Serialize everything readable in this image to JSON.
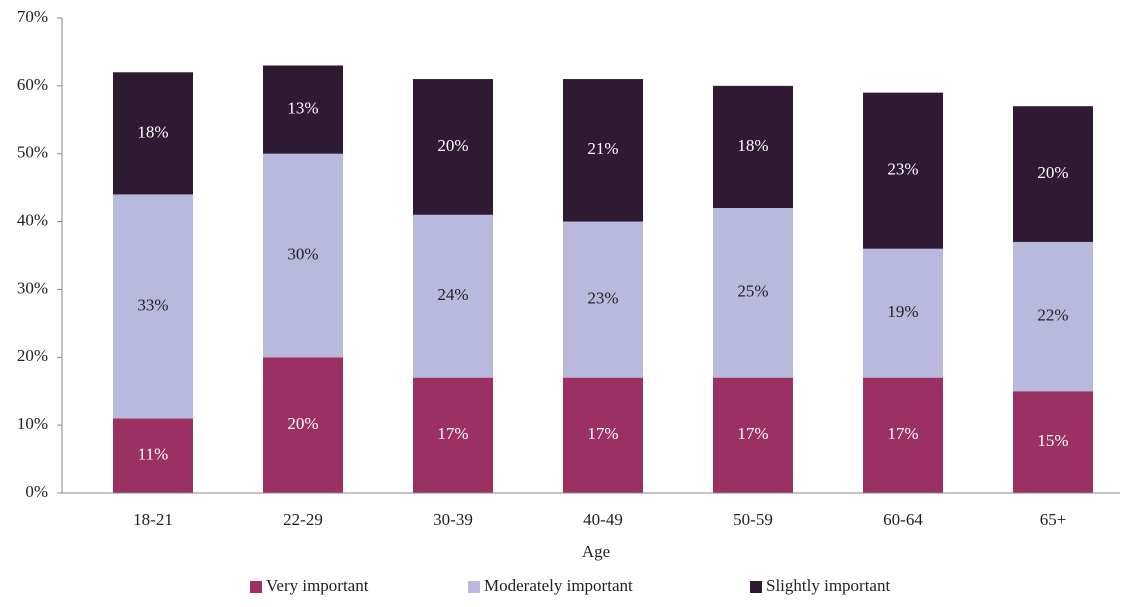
{
  "chart_data": {
    "type": "stacked_bar",
    "x_label": "Age",
    "categories": [
      "18-21",
      "22-29",
      "30-39",
      "40-49",
      "50-59",
      "60-64",
      "65+"
    ],
    "series": [
      {
        "name": "Very important",
        "color": "#9b3163",
        "label_color": "#ffffff",
        "values": [
          11,
          20,
          17,
          17,
          17,
          17,
          15
        ],
        "value_labels": [
          "11%",
          "20%",
          "17%",
          "17%",
          "17%",
          "17%",
          "15%"
        ]
      },
      {
        "name": "Moderately important",
        "color": "#b8b9dc",
        "label_color": "#222222",
        "values": [
          33,
          30,
          24,
          23,
          25,
          19,
          22
        ],
        "value_labels": [
          "33%",
          "30%",
          "24%",
          "23%",
          "25%",
          "19%",
          "22%"
        ]
      },
      {
        "name": "Slightly important",
        "color": "#2e1a33",
        "label_color": "#ffffff",
        "values": [
          18,
          13,
          20,
          21,
          18,
          23,
          20
        ],
        "value_labels": [
          "18%",
          "13%",
          "20%",
          "21%",
          "18%",
          "23%",
          "20%"
        ]
      }
    ],
    "ylim": [
      0,
      70
    ],
    "yticks": [
      {
        "value": 0,
        "label": "0%"
      },
      {
        "value": 10,
        "label": "10%"
      },
      {
        "value": 20,
        "label": "20%"
      },
      {
        "value": 30,
        "label": "30%"
      },
      {
        "value": 40,
        "label": "40%"
      },
      {
        "value": 50,
        "label": "50%"
      },
      {
        "value": 60,
        "label": "60%"
      },
      {
        "value": 70,
        "label": "70%"
      }
    ],
    "grid": false,
    "legend": "bottom"
  }
}
